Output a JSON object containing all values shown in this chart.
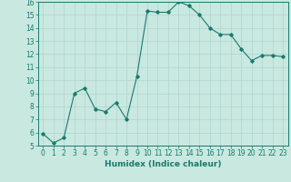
{
  "x": [
    0,
    1,
    2,
    3,
    4,
    5,
    6,
    7,
    8,
    9,
    10,
    11,
    12,
    13,
    14,
    15,
    16,
    17,
    18,
    19,
    20,
    21,
    22,
    23
  ],
  "y": [
    5.9,
    5.2,
    5.6,
    9.0,
    9.4,
    7.8,
    7.6,
    8.3,
    7.0,
    10.3,
    15.3,
    15.2,
    15.2,
    16.0,
    15.7,
    15.0,
    14.0,
    13.5,
    13.5,
    12.4,
    11.5,
    11.9,
    11.9,
    11.8
  ],
  "line_color": "#1a7a6e",
  "bg_color": "#c8e8e0",
  "grid_color": "#b0d4cc",
  "xlabel": "Humidex (Indice chaleur)",
  "ylim": [
    5,
    16
  ],
  "xlim": [
    -0.5,
    23.5
  ],
  "yticks": [
    5,
    6,
    7,
    8,
    9,
    10,
    11,
    12,
    13,
    14,
    15,
    16
  ],
  "xticks": [
    0,
    1,
    2,
    3,
    4,
    5,
    6,
    7,
    8,
    9,
    10,
    11,
    12,
    13,
    14,
    15,
    16,
    17,
    18,
    19,
    20,
    21,
    22,
    23
  ],
  "marker": "D",
  "marker_size": 1.8,
  "line_width": 0.8,
  "xlabel_fontsize": 6.5,
  "tick_fontsize": 5.5
}
